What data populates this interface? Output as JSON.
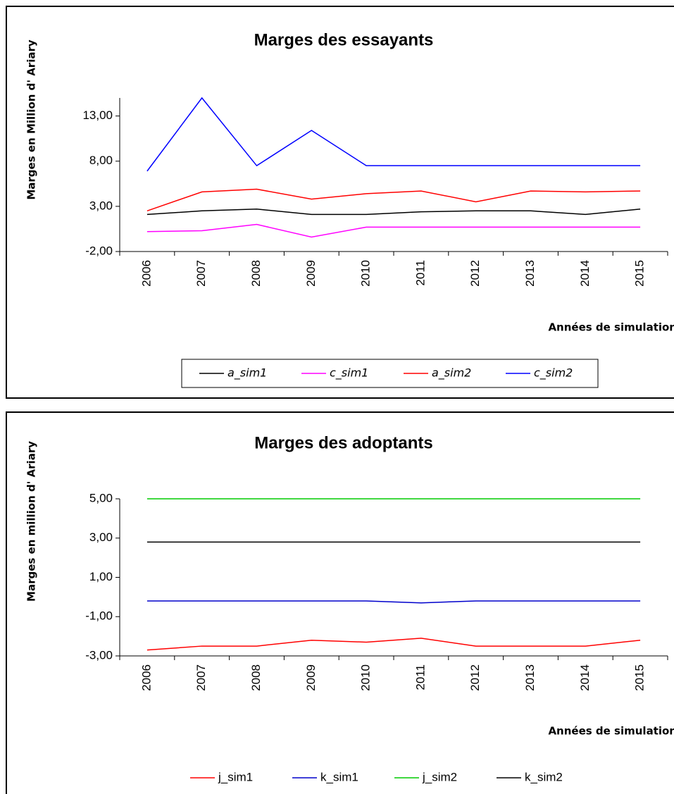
{
  "chart_data": [
    {
      "type": "line",
      "title": "Marges des essayants",
      "ylabel": "Marges en Million d' Ariary",
      "xlabel": "Années de simulation",
      "categories": [
        "2006",
        "2007",
        "2008",
        "2009",
        "2010",
        "2011",
        "2012",
        "2013",
        "2014",
        "2015"
      ],
      "ylim": [
        -2,
        15
      ],
      "yticks": [
        {
          "value": -2,
          "label": "-2,00"
        },
        {
          "value": 3,
          "label": "3,00"
        },
        {
          "value": 8,
          "label": "8,00"
        },
        {
          "value": 13,
          "label": "13,00"
        }
      ],
      "legend": "bottom",
      "legend_frame": true,
      "legend_italic": true,
      "series": [
        {
          "name": "a_sim1",
          "color": "#000000",
          "values": [
            2.1,
            2.5,
            2.7,
            2.1,
            2.1,
            2.4,
            2.5,
            2.5,
            2.1,
            2.7
          ]
        },
        {
          "name": "c_sim1",
          "color": "#ff00ff",
          "values": [
            0.2,
            0.3,
            1.0,
            -0.4,
            0.7,
            0.7,
            0.7,
            0.7,
            0.7,
            0.7
          ]
        },
        {
          "name": "a_sim2",
          "color": "#ff0000",
          "values": [
            2.5,
            4.6,
            4.9,
            3.8,
            4.4,
            4.7,
            3.5,
            4.7,
            4.6,
            4.7
          ]
        },
        {
          "name": "c_sim2",
          "color": "#0000ff",
          "values": [
            6.9,
            15.0,
            7.5,
            11.4,
            7.5,
            7.5,
            7.5,
            7.5,
            7.5,
            7.5
          ]
        }
      ]
    },
    {
      "type": "line",
      "title": "Marges des adoptants",
      "ylabel": "Marges en million d' Ariary",
      "xlabel": "Années de simulation",
      "categories": [
        "2006",
        "2007",
        "2008",
        "2009",
        "2010",
        "2011",
        "2012",
        "2013",
        "2014",
        "2015"
      ],
      "ylim": [
        -3,
        5
      ],
      "yticks": [
        {
          "value": -3,
          "label": "-3,00"
        },
        {
          "value": -1,
          "label": "-1,00"
        },
        {
          "value": 1,
          "label": "1,00"
        },
        {
          "value": 3,
          "label": "3,00"
        },
        {
          "value": 5,
          "label": "5,00"
        }
      ],
      "legend": "bottom",
      "legend_frame": false,
      "legend_italic": false,
      "series": [
        {
          "name": "j_sim1",
          "color": "#ff0000",
          "values": [
            -2.7,
            -2.5,
            -2.5,
            -2.2,
            -2.3,
            -2.1,
            -2.5,
            -2.5,
            -2.5,
            -2.2
          ]
        },
        {
          "name": "k_sim1",
          "color": "#0000cc",
          "values": [
            -0.2,
            -0.2,
            -0.2,
            -0.2,
            -0.2,
            -0.3,
            -0.2,
            -0.2,
            -0.2,
            -0.2
          ]
        },
        {
          "name": "j_sim2",
          "color": "#00cc00",
          "values": [
            5.0,
            5.0,
            5.0,
            5.0,
            5.0,
            5.0,
            5.0,
            5.0,
            5.0,
            5.0
          ]
        },
        {
          "name": "k_sim2",
          "color": "#000000",
          "values": [
            2.8,
            2.8,
            2.8,
            2.8,
            2.8,
            2.8,
            2.8,
            2.8,
            2.8,
            2.8
          ]
        }
      ]
    }
  ]
}
